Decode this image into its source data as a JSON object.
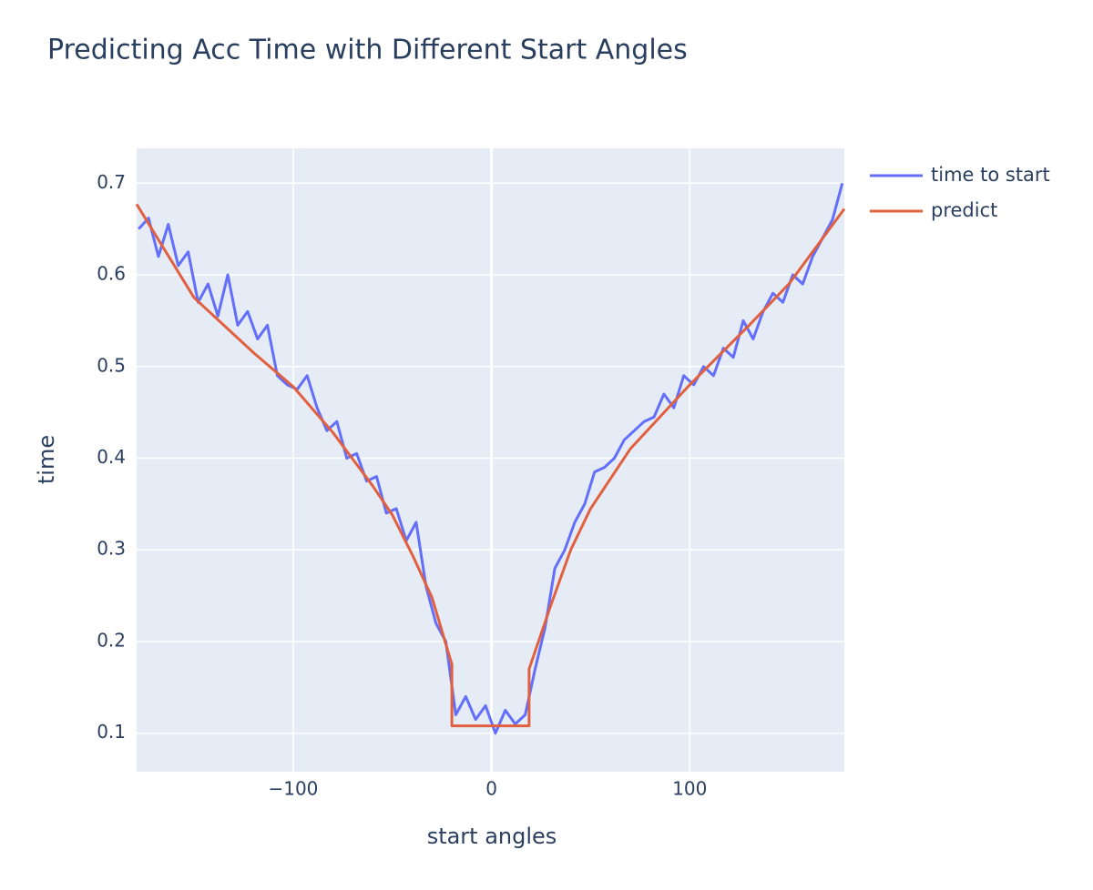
{
  "chart_data": {
    "type": "line",
    "title": "Predicting Acc Time with Different Start Angles",
    "x_label": "start angles",
    "y_label": "time",
    "xlim": [
      -179,
      178
    ],
    "ylim": [
      0.058,
      0.738
    ],
    "xticks": [
      {
        "value": -100,
        "label": "−100"
      },
      0,
      100
    ],
    "yticks": [
      0.1,
      0.2,
      0.3,
      0.4,
      0.5,
      0.6,
      0.7
    ],
    "grid": true,
    "series": [
      {
        "name": "time to start",
        "color": "#636efa",
        "x": [
          -178,
          -173,
          -168,
          -163,
          -158,
          -153,
          -148,
          -143,
          -138,
          -133,
          -128,
          -123,
          -118,
          -113,
          -108,
          -103,
          -98,
          -93,
          -88,
          -83,
          -78,
          -73,
          -68,
          -63,
          -58,
          -53,
          -48,
          -43,
          -38,
          -33,
          -28,
          -23,
          -18,
          -13,
          -8,
          -3,
          2,
          7,
          12,
          17,
          22,
          27,
          32,
          37,
          42,
          47,
          52,
          57,
          62,
          67,
          72,
          77,
          82,
          87,
          92,
          97,
          102,
          107,
          112,
          117,
          122,
          127,
          132,
          137,
          142,
          147,
          152,
          157,
          162,
          167,
          172,
          177
        ],
        "values": [
          0.65,
          0.662,
          0.62,
          0.655,
          0.61,
          0.625,
          0.57,
          0.59,
          0.555,
          0.6,
          0.545,
          0.56,
          0.53,
          0.545,
          0.49,
          0.48,
          0.475,
          0.49,
          0.455,
          0.43,
          0.44,
          0.4,
          0.405,
          0.375,
          0.38,
          0.34,
          0.345,
          0.31,
          0.33,
          0.26,
          0.22,
          0.2,
          0.12,
          0.14,
          0.115,
          0.13,
          0.1,
          0.125,
          0.11,
          0.12,
          0.17,
          0.215,
          0.28,
          0.3,
          0.33,
          0.35,
          0.385,
          0.39,
          0.4,
          0.42,
          0.43,
          0.44,
          0.445,
          0.47,
          0.455,
          0.49,
          0.48,
          0.5,
          0.49,
          0.52,
          0.51,
          0.55,
          0.53,
          0.56,
          0.58,
          0.57,
          0.6,
          0.59,
          0.62,
          0.64,
          0.66,
          0.7
        ]
      },
      {
        "name": "predict",
        "color": "#e0603f",
        "x": [
          -179,
          -150,
          -120,
          -100,
          -80,
          -60,
          -50,
          -40,
          -30,
          -20,
          -20,
          19,
          19,
          30,
          40,
          50,
          70,
          100,
          130,
          150,
          178
        ],
        "values": [
          0.677,
          0.575,
          0.515,
          0.478,
          0.428,
          0.37,
          0.338,
          0.295,
          0.248,
          0.175,
          0.108,
          0.108,
          0.17,
          0.24,
          0.3,
          0.345,
          0.41,
          0.48,
          0.545,
          0.59,
          0.672
        ]
      }
    ]
  }
}
